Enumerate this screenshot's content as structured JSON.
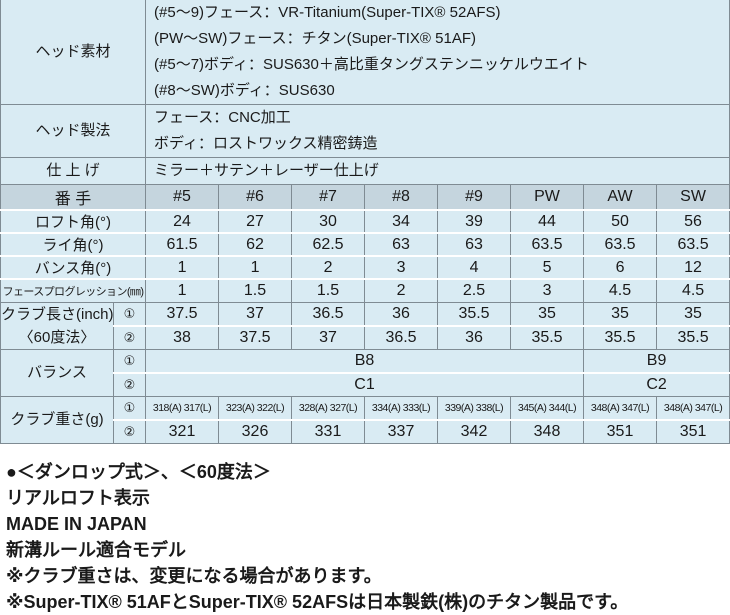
{
  "colors": {
    "row_bg": "#d9ebf3",
    "header_bg": "#c5d5de",
    "border_gray": "#7f8b93",
    "separator_white": "#ffffff",
    "text": "#1a1a1a"
  },
  "info_rows": [
    {
      "label": "ヘッド素材",
      "lines": [
        "(#5〜9)フェース：VR-Titanium(Super-TIX® 52AFS)",
        "(PW〜SW)フェース：チタン(Super-TIX® 51AF)",
        "(#5〜7)ボディ：SUS630＋高比重タングステンニッケルウエイト",
        "(#8〜SW)ボディ：SUS630"
      ]
    },
    {
      "label": "ヘッド製法",
      "lines": [
        "フェース：CNC加工",
        "ボディ：ロストワックス精密鋳造"
      ]
    },
    {
      "label": "仕 上 げ",
      "lines": [
        "ミラー＋サテン＋レーザー仕上げ"
      ]
    }
  ],
  "header": {
    "label": "番 手",
    "columns": [
      "#5",
      "#6",
      "#7",
      "#8",
      "#9",
      "PW",
      "AW",
      "SW"
    ]
  },
  "simple_rows": [
    {
      "label": "ロフト角(°)",
      "values": [
        "24",
        "27",
        "30",
        "34",
        "39",
        "44",
        "50",
        "56"
      ]
    },
    {
      "label": "ライ角(°)",
      "values": [
        "61.5",
        "62",
        "62.5",
        "63",
        "63",
        "63.5",
        "63.5",
        "63.5"
      ]
    },
    {
      "label": "バンス角(°)",
      "values": [
        "1",
        "1",
        "2",
        "3",
        "4",
        "5",
        "6",
        "12"
      ]
    },
    {
      "label": "フェースプログレッション(㎜)",
      "values": [
        "1",
        "1.5",
        "1.5",
        "2",
        "2.5",
        "3",
        "4.5",
        "4.5"
      ],
      "small_label": true
    }
  ],
  "group_rows": [
    {
      "label": [
        "クラブ長さ(inch)",
        "〈60度法〉"
      ],
      "subs": [
        {
          "mark": "①",
          "values": [
            "37.5",
            "37",
            "36.5",
            "36",
            "35.5",
            "35",
            "35",
            "35"
          ]
        },
        {
          "mark": "②",
          "values": [
            "38",
            "37.5",
            "37",
            "36.5",
            "36",
            "35.5",
            "35.5",
            "35.5"
          ]
        }
      ]
    },
    {
      "label": [
        "バランス"
      ],
      "subs": [
        {
          "mark": "①",
          "spans": [
            {
              "text": "B8",
              "cols": 6
            },
            {
              "text": "B9",
              "cols": 2
            }
          ]
        },
        {
          "mark": "②",
          "spans": [
            {
              "text": "C1",
              "cols": 6
            },
            {
              "text": "C2",
              "cols": 2
            }
          ]
        }
      ]
    },
    {
      "label": [
        "クラブ重さ(g)"
      ],
      "subs": [
        {
          "mark": "①",
          "small": true,
          "values": [
            "318(A) 317(L)",
            "323(A) 322(L)",
            "328(A) 327(L)",
            "334(A) 333(L)",
            "339(A) 338(L)",
            "345(A) 344(L)",
            "348(A) 347(L)",
            "348(A) 347(L)"
          ]
        },
        {
          "mark": "②",
          "values": [
            "321",
            "326",
            "331",
            "337",
            "342",
            "348",
            "351",
            "351"
          ]
        }
      ]
    }
  ],
  "notes": [
    "●＜ダンロップ式＞、＜60度法＞",
    "リアルロフト表示",
    "MADE IN JAPAN",
    "新溝ルール適合モデル",
    "※クラブ重さは、変更になる場合があります。",
    "※Super-TIX® 51AFとSuper-TIX® 52AFSは日本製鉄(株)のチタン製品です。"
  ]
}
